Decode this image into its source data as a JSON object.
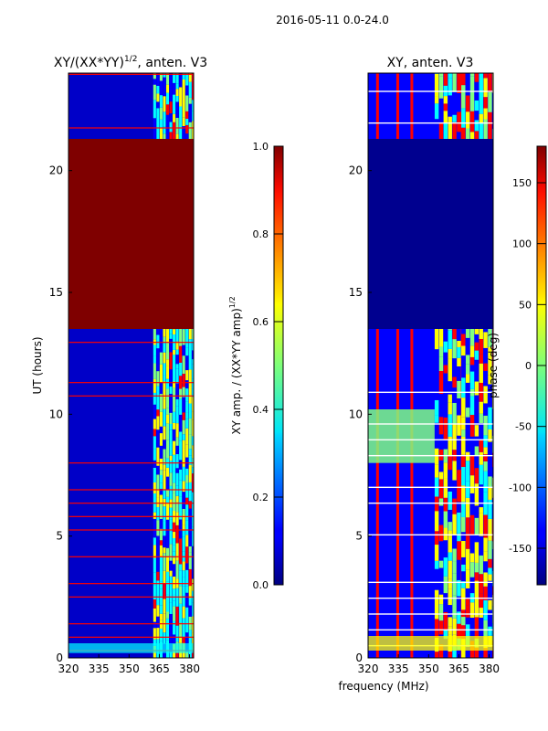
{
  "suptitle": "2016-05-11 0.0-24.0",
  "colors": {
    "dark_red": "#7f0000",
    "dark_blue": "#00008f",
    "blue": "#0000ff",
    "deep_blue": "#0000c8",
    "cyan": "#00ffff",
    "yellow": "#ffff00",
    "green_yellow": "#80ff80",
    "red": "#ff0000",
    "white": "#ffffff"
  },
  "chart_data": [
    {
      "type": "heatmap",
      "title": "XY/(XX*YY)",
      "title_sup": "1/2",
      "title_tail": ", anten. V3",
      "xlabel": "",
      "ylabel": "UT (hours)",
      "xlim": [
        320,
        382
      ],
      "ylim": [
        0,
        24
      ],
      "xticks": [
        "320",
        "335",
        "350",
        "365",
        "380"
      ],
      "yticks": [
        "0",
        "5",
        "10",
        "15",
        "20"
      ],
      "masked_ut_range": [
        13.5,
        21.3
      ],
      "masked_value": 1.0,
      "colorbar": {
        "label": "XY amp. / (XX*YY amp)",
        "label_sup": "1/2",
        "range": [
          0.0,
          1.0
        ],
        "ticks": [
          "0.0",
          "0.2",
          "0.4",
          "0.6",
          "0.8",
          "1.0"
        ]
      }
    },
    {
      "type": "heatmap",
      "title": "XY, anten. V3",
      "xlabel": "frequency (MHz)",
      "ylabel": "",
      "xlim": [
        320,
        382
      ],
      "ylim": [
        0,
        24
      ],
      "xticks": [
        "320",
        "335",
        "350",
        "365",
        "380"
      ],
      "yticks": [
        "0",
        "5",
        "10",
        "15",
        "20"
      ],
      "masked_ut_range": [
        13.5,
        21.3
      ],
      "colorbar": {
        "label": "phase (deg)",
        "range": [
          -180,
          180
        ],
        "ticks": [
          "-150",
          "-100",
          "-50",
          "0",
          "50",
          "100",
          "150"
        ]
      }
    }
  ]
}
